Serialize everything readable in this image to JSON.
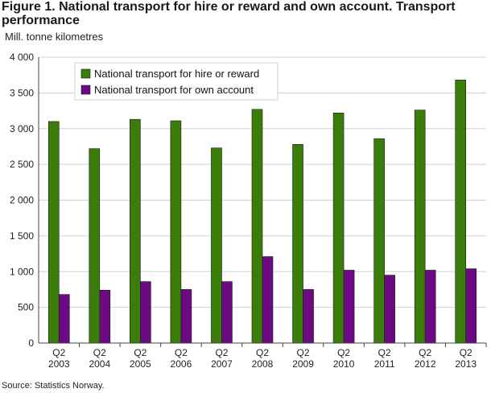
{
  "header": {
    "title": "Figure 1. National transport for hire or reward and own account. Transport performance",
    "unit_label": "Mill. tonne kilometres"
  },
  "footer": {
    "source": "Source: Statistics Norway."
  },
  "colors": {
    "hire_or_reward": "#3a7d0a",
    "own_account": "#6b0a82",
    "grid": "#d0d0d0",
    "axis": "#444444"
  },
  "chart_data": {
    "type": "bar",
    "categories": [
      [
        "Q2",
        "2003"
      ],
      [
        "Q2",
        "2004"
      ],
      [
        "Q2",
        "2005"
      ],
      [
        "Q2",
        "2006"
      ],
      [
        "Q2",
        "2007"
      ],
      [
        "Q2",
        "2008"
      ],
      [
        "Q2",
        "2009"
      ],
      [
        "Q2",
        "2010"
      ],
      [
        "Q2",
        "2011"
      ],
      [
        "Q2",
        "2012"
      ],
      [
        "Q2",
        "2013"
      ]
    ],
    "series": [
      {
        "name": "National transport for hire or reward",
        "values": [
          3100,
          2720,
          3130,
          3110,
          2730,
          3270,
          2780,
          3220,
          2860,
          3260,
          3680
        ]
      },
      {
        "name": "National transport for own account",
        "values": [
          680,
          740,
          860,
          750,
          860,
          1210,
          750,
          1020,
          950,
          1020,
          1040
        ]
      }
    ],
    "yticks": [
      "0",
      "500",
      "1 000",
      "1 500",
      "2 000",
      "2 500",
      "3 000",
      "3 500",
      "4 000"
    ],
    "ylim": [
      0,
      4000
    ],
    "legend_position": "top-left",
    "grid": true
  }
}
